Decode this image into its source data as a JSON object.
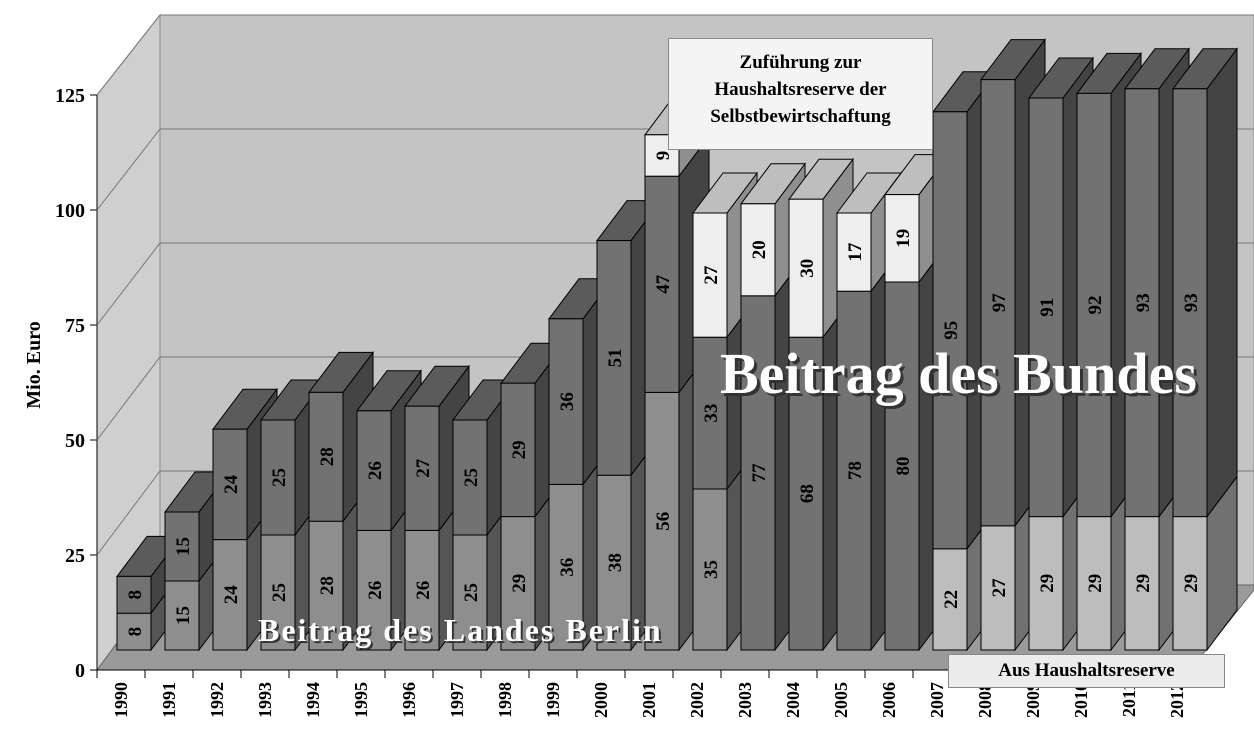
{
  "chart_data": {
    "type": "bar",
    "stacked": true,
    "ylabel": "Mio. Euro",
    "categories": [
      "1990",
      "1991",
      "1992",
      "1993",
      "1994",
      "1995",
      "1996",
      "1997",
      "1998",
      "1999",
      "2000",
      "2001",
      "2002",
      "2003",
      "2004",
      "2005",
      "2006",
      "2007",
      "2008",
      "2009",
      "2010",
      "2011",
      "2012"
    ],
    "series": [
      {
        "name": "Beitrag des Landes Berlin",
        "color": "#8e8e8e",
        "values": [
          8,
          15,
          24,
          25,
          28,
          26,
          26,
          25,
          29,
          36,
          38,
          56,
          35,
          null,
          null,
          null,
          null,
          null,
          null,
          null,
          null,
          null,
          null
        ]
      },
      {
        "name": "Aus Haushaltsreserve",
        "color": "#bdbdbd",
        "values": [
          null,
          null,
          null,
          null,
          null,
          null,
          null,
          null,
          null,
          null,
          null,
          null,
          null,
          null,
          null,
          null,
          null,
          22,
          27,
          29,
          29,
          29,
          29
        ]
      },
      {
        "name": "Beitrag des Bundes",
        "color": "#727272",
        "values": [
          8,
          15,
          24,
          25,
          28,
          26,
          27,
          25,
          29,
          36,
          51,
          47,
          33,
          77,
          68,
          78,
          80,
          95,
          97,
          91,
          92,
          93,
          93
        ]
      },
      {
        "name": "Zuführung zur Haushaltsreserve der Selbstbewirtschaftung",
        "color": "#eeeeee",
        "values": [
          null,
          null,
          null,
          null,
          null,
          null,
          null,
          null,
          null,
          null,
          null,
          9,
          27,
          20,
          30,
          17,
          19,
          null,
          null,
          null,
          null,
          null,
          null
        ]
      }
    ],
    "ylim": [
      0,
      125
    ],
    "yticks": [
      0,
      25,
      50,
      75,
      100,
      125
    ],
    "grid": true
  }
}
